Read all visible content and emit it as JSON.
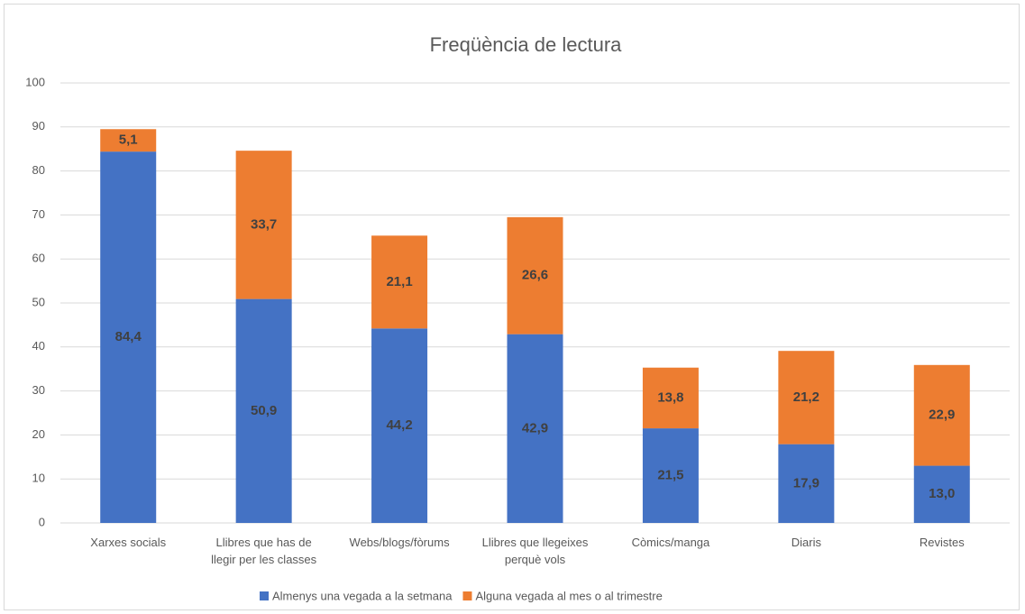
{
  "chart_data": {
    "type": "stacked_bar",
    "title": "Freqüència de lectura",
    "categories": [
      "Xarxes socials",
      "Llibres que has de llegir per les classes",
      "Webs/blogs/fòrums",
      "Llibres que llegeixes perquè vols",
      "Còmics/manga",
      "Diaris",
      "Revistes"
    ],
    "series": [
      {
        "name": "Almenys una vegada a la setmana",
        "color": "#4472c4",
        "values": [
          84.4,
          50.9,
          44.2,
          42.9,
          21.5,
          17.9,
          13.0
        ],
        "value_labels": [
          "84,4",
          "50,9",
          "44,2",
          "42,9",
          "21,5",
          "17,9",
          "13,0"
        ]
      },
      {
        "name": "Alguna vegada al mes o al trimestre",
        "color": "#ed7d31",
        "values": [
          5.1,
          33.7,
          21.1,
          26.6,
          13.8,
          21.2,
          22.9
        ],
        "value_labels": [
          "5,1",
          "33,7",
          "21,1",
          "26,6",
          "13,8",
          "21,2",
          "22,9"
        ]
      }
    ],
    "ylim": [
      0,
      100
    ],
    "yticks": [
      0,
      10,
      20,
      30,
      40,
      50,
      60,
      70,
      80,
      90,
      100
    ],
    "grid": true,
    "legend": "bottom"
  }
}
